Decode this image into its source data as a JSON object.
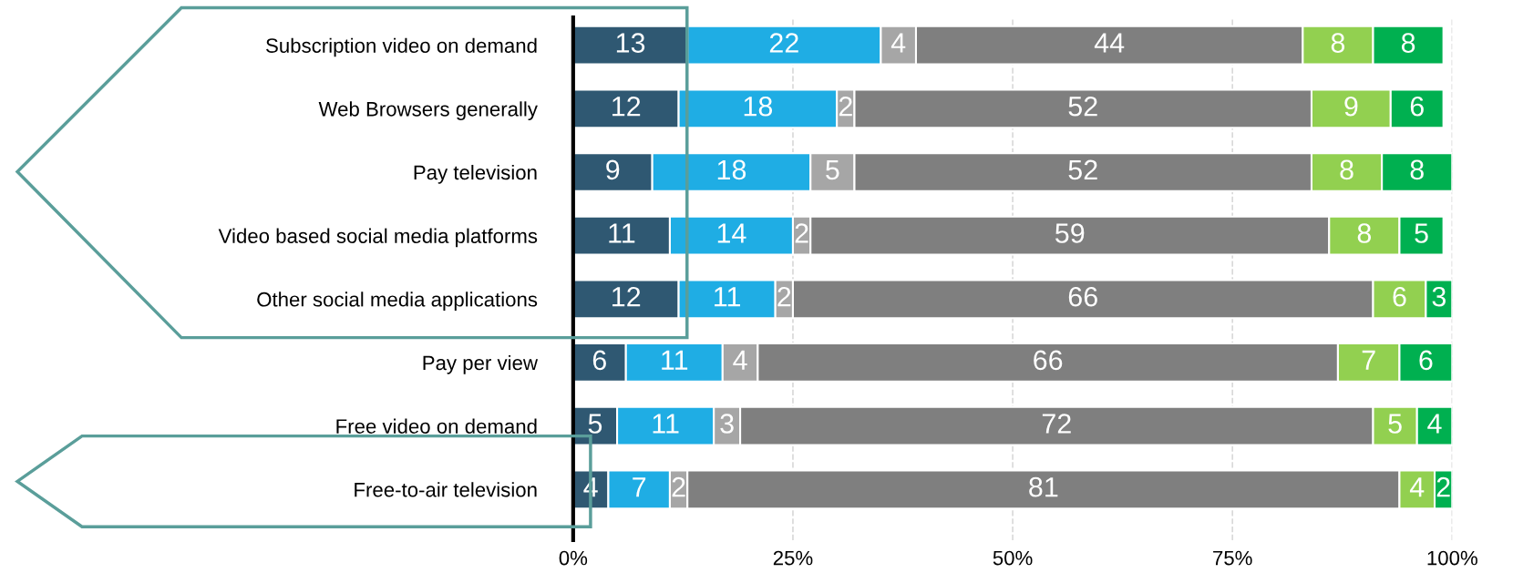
{
  "chart_data": {
    "type": "bar",
    "orientation": "horizontal",
    "stacked": true,
    "data_labels": true,
    "grid": "x",
    "categories": [
      "Subscription video on demand",
      "Web Browsers generally",
      "Pay television",
      "Video based social media platforms",
      "Other social media applications",
      "Pay per view",
      "Free video on demand",
      "Free-to-air television"
    ],
    "xlim": [
      0,
      100
    ],
    "xticks": [
      {
        "value": 0,
        "label": "0%"
      },
      {
        "value": 25,
        "label": "25%"
      },
      {
        "value": 50,
        "label": "50%"
      },
      {
        "value": 75,
        "label": "75%"
      },
      {
        "value": 100,
        "label": "100%"
      }
    ],
    "series": [
      {
        "color": "#2f5872",
        "values": [
          13,
          12,
          9,
          11,
          12,
          6,
          5,
          4
        ]
      },
      {
        "color": "#1fade4",
        "values": [
          22,
          18,
          18,
          14,
          11,
          11,
          11,
          7
        ]
      },
      {
        "color": "#a6a6a6",
        "values": [
          4,
          2,
          5,
          2,
          2,
          4,
          3,
          2
        ]
      },
      {
        "color": "#7f7f7f",
        "values": [
          44,
          52,
          52,
          59,
          66,
          66,
          72,
          81
        ]
      },
      {
        "color": "#92d050",
        "values": [
          8,
          9,
          8,
          8,
          6,
          7,
          5,
          4
        ]
      },
      {
        "color": "#00b050",
        "values": [
          8,
          6,
          8,
          5,
          3,
          6,
          4,
          2
        ]
      }
    ]
  }
}
